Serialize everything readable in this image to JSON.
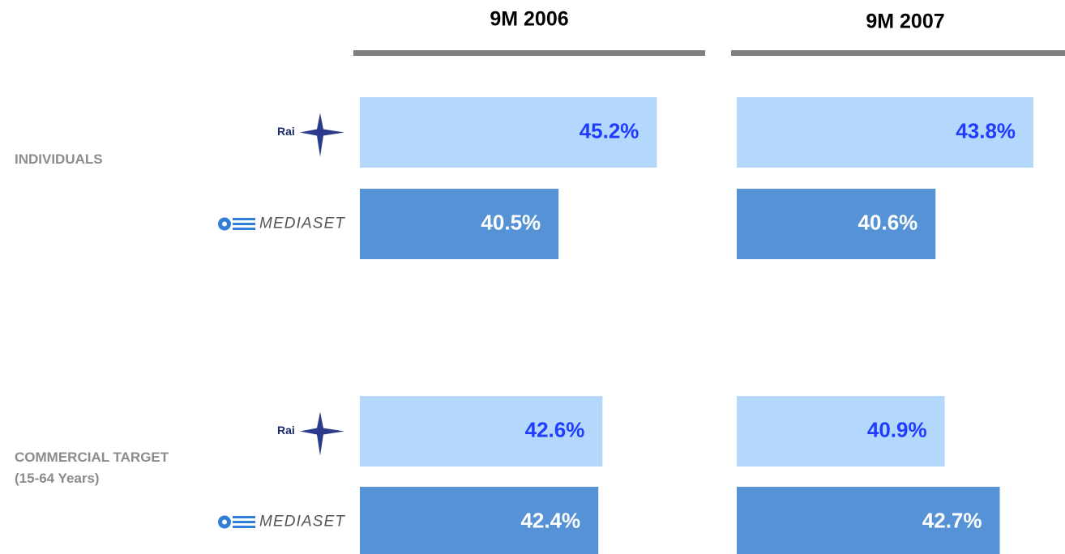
{
  "chart_data": [
    {
      "type": "bar",
      "title": "9M 2006",
      "categories": [
        "INDIVIDUALS",
        "COMMERCIAL TARGET\n(15-64 Years)"
      ],
      "series": [
        {
          "name": "Rai",
          "color": "#b4d8fb",
          "label_color": "#1f3cff",
          "values": [
            45.2,
            42.6
          ],
          "value_labels": [
            "45.2%",
            "42.6%"
          ]
        },
        {
          "name": "MEDIASET",
          "color": "#5593d6",
          "label_color": "#ffffff",
          "values": [
            40.5,
            42.4
          ],
          "value_labels": [
            "40.5%",
            "42.4%"
          ]
        }
      ],
      "xlim": [
        31,
        46.5
      ]
    },
    {
      "type": "bar",
      "title": "9M 2007",
      "series": [
        {
          "color": "#b4d8fb",
          "label_color": "#1f3cff",
          "values": [
            43.8,
            40.9
          ],
          "value_labels": [
            "43.8%",
            "40.9%"
          ]
        },
        {
          "color": "#5593d6",
          "label_color": "#ffffff",
          "values": [
            40.6,
            42.7
          ],
          "value_labels": [
            "40.6%",
            "42.7%"
          ]
        }
      ],
      "xlim": [
        34.1,
        44.7
      ]
    }
  ]
}
